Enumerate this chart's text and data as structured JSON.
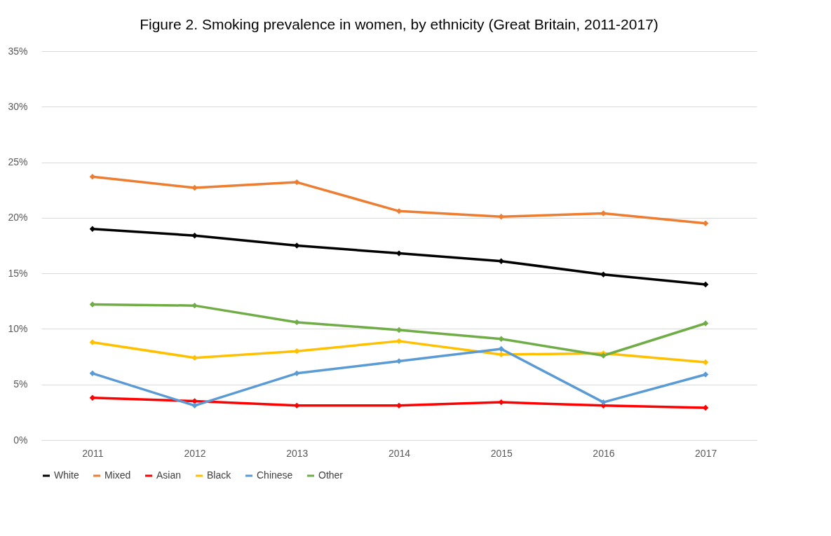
{
  "chart_data": {
    "type": "line",
    "title": "Figure 2. Smoking prevalence in women, by ethnicity (Great Britain, 2011-2017)",
    "categories": [
      "2011",
      "2012",
      "2013",
      "2014",
      "2015",
      "2016",
      "2017"
    ],
    "series": [
      {
        "name": "White",
        "color": "#000000",
        "values": [
          19.0,
          18.4,
          17.5,
          16.8,
          16.1,
          14.9,
          14.0
        ]
      },
      {
        "name": "Mixed",
        "color": "#ed7d31",
        "values": [
          23.7,
          22.7,
          23.2,
          20.6,
          20.1,
          20.4,
          19.5
        ]
      },
      {
        "name": "Asian",
        "color": "#ff0000",
        "values": [
          3.8,
          3.5,
          3.1,
          3.1,
          3.4,
          3.1,
          2.9
        ]
      },
      {
        "name": "Black",
        "color": "#ffc000",
        "values": [
          8.8,
          7.4,
          8.0,
          8.9,
          7.7,
          7.8,
          7.0
        ]
      },
      {
        "name": "Chinese",
        "color": "#5b9bd5",
        "values": [
          6.0,
          3.1,
          6.0,
          7.1,
          8.2,
          3.4,
          5.9
        ]
      },
      {
        "name": "Other",
        "color": "#70ad47",
        "values": [
          12.2,
          12.1,
          10.6,
          9.9,
          9.1,
          7.6,
          10.5
        ]
      }
    ],
    "ylim": [
      0,
      35
    ],
    "yticks": [
      {
        "value": 0,
        "label": "0%"
      },
      {
        "value": 5,
        "label": "5%"
      },
      {
        "value": 10,
        "label": "10%"
      },
      {
        "value": 15,
        "label": "15%"
      },
      {
        "value": 20,
        "label": "20%"
      },
      {
        "value": 25,
        "label": "25%"
      },
      {
        "value": 30,
        "label": "30%"
      },
      {
        "value": 35,
        "label": "35%"
      }
    ],
    "grid": "y",
    "legend": "bottom",
    "marker": "diamond",
    "line_style": "solid"
  }
}
